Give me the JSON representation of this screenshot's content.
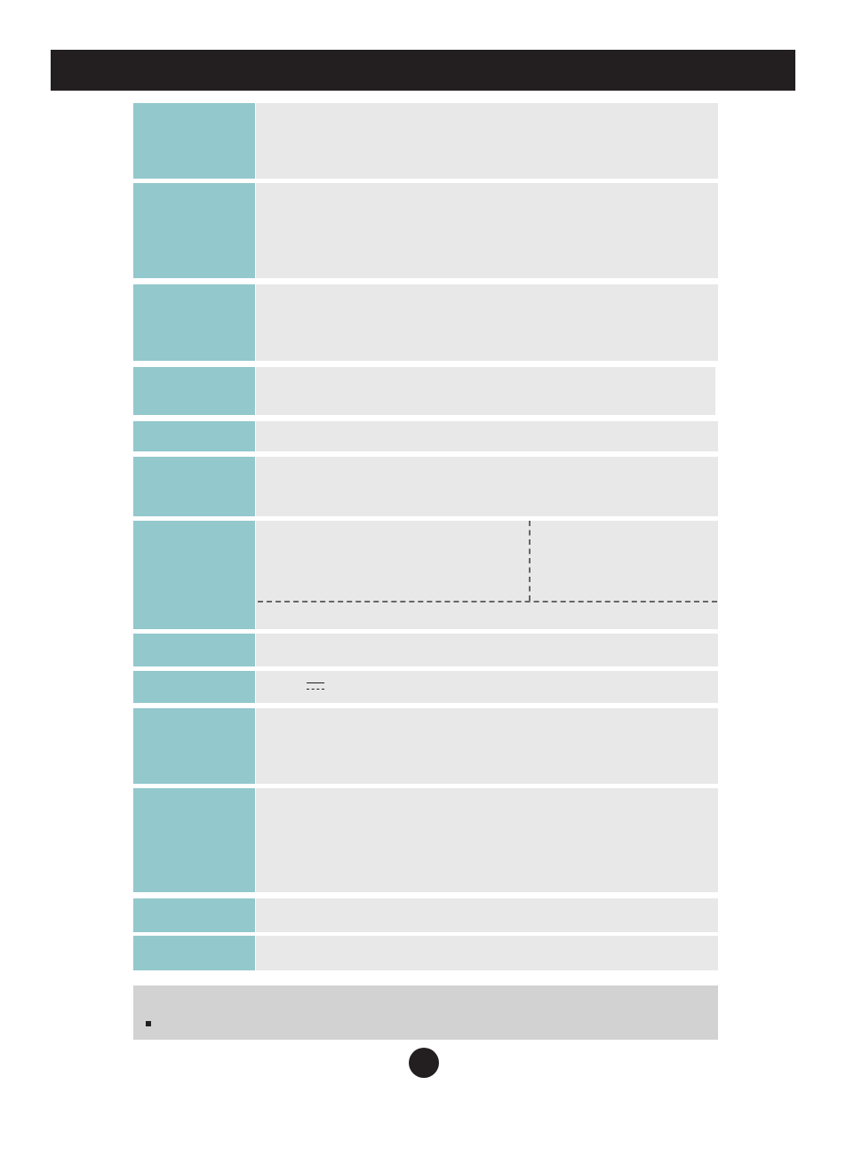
{
  "colors": {
    "header_bar": "#231f20",
    "label_column": "#93c8cc",
    "value_column": "#e8e8e8",
    "note_box": "#d2d2d2"
  },
  "icons": {
    "dc_symbol": "direct-current-symbol-icon",
    "note_bullet": "square-bullet-icon",
    "page_marker": "filled-circle-icon"
  }
}
